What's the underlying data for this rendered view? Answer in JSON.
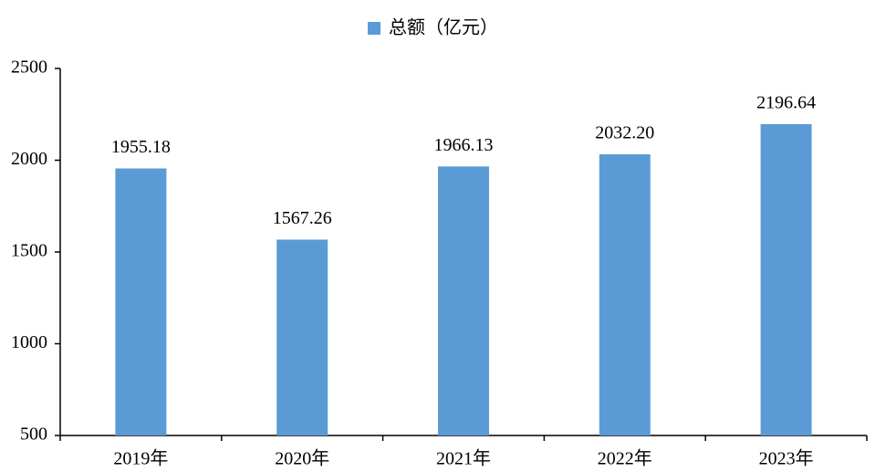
{
  "chart_data": {
    "type": "bar",
    "categories": [
      "2019年",
      "2020年",
      "2021年",
      "2022年",
      "2023年"
    ],
    "series": [
      {
        "name": "总额（亿元）",
        "color": "#5b9bd5",
        "values": [
          1955.18,
          1567.26,
          1966.13,
          2032.2,
          2196.64
        ],
        "value_labels": [
          "1955.18",
          "1567.26",
          "1966.13",
          "2032.20",
          "2196.64"
        ]
      }
    ],
    "ylim": [
      500,
      2500
    ],
    "yticks": [
      500,
      1000,
      1500,
      2000,
      2500
    ],
    "grid": false,
    "legend": "top"
  }
}
